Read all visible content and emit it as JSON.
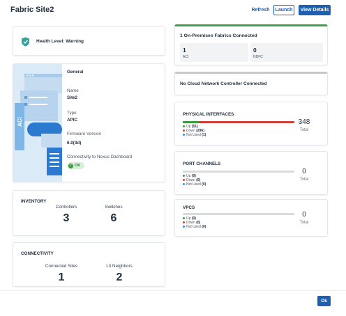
{
  "header": {
    "title": "Fabric Site2",
    "refresh_label": "Refresh",
    "launch_label": "Launch",
    "view_details_label": "View Details"
  },
  "health": {
    "icon": "shield-check-icon",
    "text": "Health Level: Warning"
  },
  "general": {
    "section_title": "General",
    "illustration_text": "ACI",
    "name_label": "Name",
    "name_value": "Site2",
    "type_label": "Type",
    "type_value": "APIC",
    "firmware_label": "Firmware Version",
    "firmware_value": "6.0(3d)",
    "connectivity_label": "Connectivity to Nexus Dashboard",
    "connectivity_status": "OK"
  },
  "inventory": {
    "title": "INVENTORY",
    "controllers_label": "Controllers",
    "controllers_value": "3",
    "switches_label": "Switches",
    "switches_value": "6"
  },
  "connectivity": {
    "title": "CONNECTIVITY",
    "connected_sites_label": "Connected Sites",
    "connected_sites_value": "1",
    "l3_neighbors_label": "L3 Neighbors",
    "l3_neighbors_value": "2"
  },
  "onprem": {
    "title": "1 On-Premises Fabrics Connected",
    "aci_count": "1",
    "aci_label": "ACI",
    "ndfc_count": "0",
    "ndfc_label": "NDFC",
    "accent_color": "#36a34a"
  },
  "cloud": {
    "title": "No Cloud Network Controller Connected"
  },
  "physical_interfaces": {
    "title": "PHYSICAL INTERFACES",
    "up_label": "Up",
    "up_count": "(51)",
    "down_label": "Down",
    "down_count": "(296)",
    "not_used_label": "Not Used",
    "not_used_count": "(1)",
    "total_value": "348",
    "total_label": "Total",
    "up_fraction": 0.15,
    "down_fraction": 0.85
  },
  "port_channels": {
    "title": "PORT CHANNELS",
    "up_label": "Up",
    "up_count": "(0)",
    "down_label": "Down",
    "down_count": "(0)",
    "not_used_label": "Not Used",
    "not_used_count": "(0)",
    "total_value": "0",
    "total_label": "Total"
  },
  "vpcs": {
    "title": "VPCS",
    "up_label": "Up",
    "up_count": "(0)",
    "down_label": "Down",
    "down_count": "(0)",
    "not_used_label": "Not Used",
    "not_used_count": "(0)",
    "total_value": "0",
    "total_label": "Total"
  },
  "colors": {
    "up": "#3a9b3f",
    "down": "#d43f3a",
    "not_used": "#2b8fd6",
    "primary": "#1f5fb0"
  },
  "footer": {
    "ok_label": "Ok"
  }
}
